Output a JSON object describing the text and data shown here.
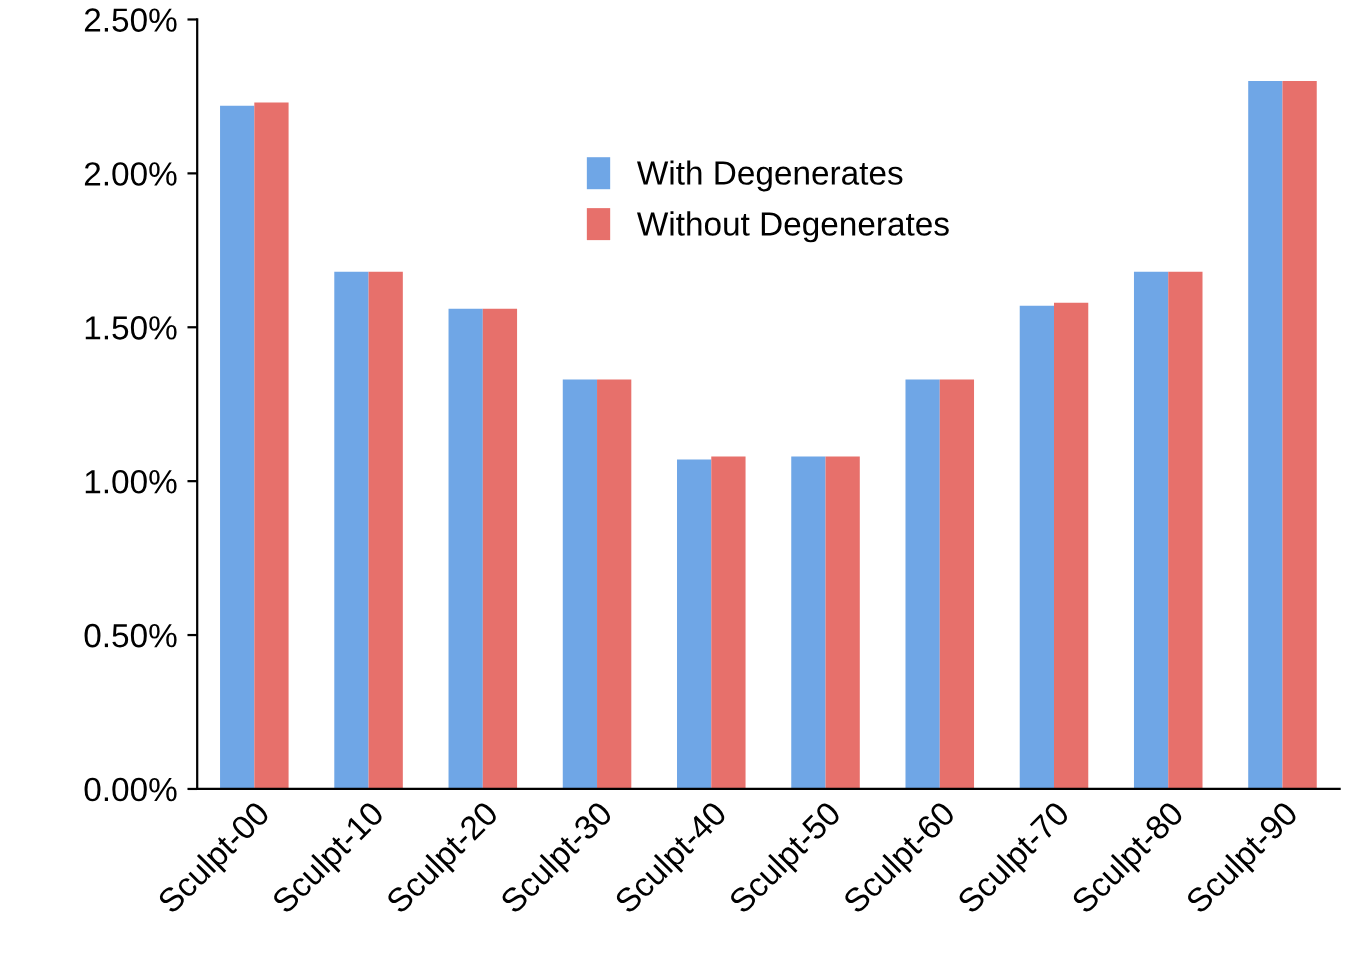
{
  "chart_data": {
    "type": "bar",
    "categories": [
      "Sculpt-00",
      "Sculpt-10",
      "Sculpt-20",
      "Sculpt-30",
      "Sculpt-40",
      "Sculpt-50",
      "Sculpt-60",
      "Sculpt-70",
      "Sculpt-80",
      "Sculpt-90"
    ],
    "series": [
      {
        "name": "With Degenerates",
        "color": "#6fa6e6",
        "values": [
          2.22,
          1.68,
          1.56,
          1.33,
          1.07,
          1.08,
          1.33,
          1.57,
          1.68,
          2.3
        ]
      },
      {
        "name": "Without Degenerates",
        "color": "#e7706b",
        "values": [
          2.23,
          1.68,
          1.56,
          1.33,
          1.08,
          1.08,
          1.33,
          1.58,
          1.68,
          2.3
        ]
      }
    ],
    "ylim": [
      0,
      2.5
    ],
    "yticks": [
      {
        "value": 0,
        "label": "0.00%"
      },
      {
        "value": 0.5,
        "label": "0.50%"
      },
      {
        "value": 1,
        "label": "1.00%"
      },
      {
        "value": 1.5,
        "label": "1.50%"
      },
      {
        "value": 2,
        "label": "2.00%"
      },
      {
        "value": 2.5,
        "label": "2.50%"
      }
    ],
    "grid": false,
    "legend": "top"
  }
}
